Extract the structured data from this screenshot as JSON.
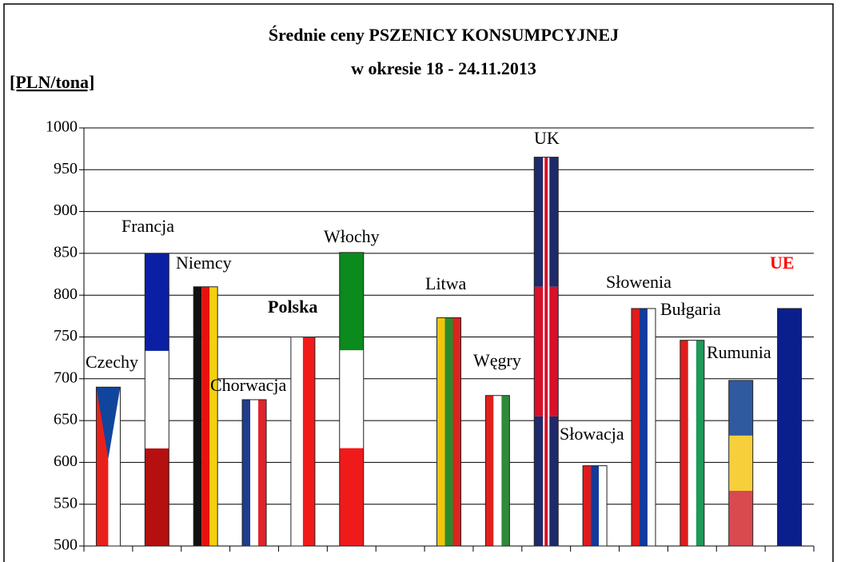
{
  "chart_data": {
    "type": "bar",
    "title": "Średnie ceny PSZENICY KONSUMPCYJNEJ",
    "subtitle": "w okresie 18 - 24.11.2013",
    "y_label": "[PLN/tona]",
    "categories": [
      "Czechy",
      "Francja",
      "Niemcy",
      "Chorwacja",
      "Polska",
      "Włochy",
      null,
      "Litwa",
      "Węgry",
      "UK",
      "Słowacja",
      "Słowenia",
      "Bułgaria",
      "Rumunia",
      "UE"
    ],
    "values": [
      690,
      850,
      810,
      675,
      750,
      851,
      null,
      773,
      680,
      965,
      596,
      784,
      746,
      698,
      784
    ],
    "colors": [
      [
        "#e8221b",
        "#ffffff"
      ],
      [
        "#0a1fa3",
        "#ffffff",
        "#b50f0f"
      ],
      [
        "#111111",
        "#e8110f",
        "#f5d10c"
      ],
      [
        "#1f3d8f",
        "#ffffff",
        "#e0242b"
      ],
      [
        "#ffffff",
        "#f01a1a"
      ],
      [
        "#0b8a1d",
        "#ffffff",
        "#f01a1a"
      ],
      null,
      [
        "#f2c40f",
        "#2c8a2c",
        "#d9241f"
      ],
      [
        "#e0201d",
        "#ffffff",
        "#2f8a3a"
      ],
      [
        "#1f2a6b",
        "#d8102a",
        "#1f2a6b"
      ],
      [
        "#e01b1b",
        "#123a9a",
        "#ffffff"
      ],
      [
        "#e01b1b",
        "#123a9a",
        "#ffffff"
      ],
      [
        "#e01b1b",
        "#ffffff",
        "#1f9a5a"
      ],
      [
        "#2f5aa0",
        "#f6cf3a",
        "#d94a4f"
      ],
      [
        "#0b1f8c"
      ]
    ],
    "ylim": [
      500,
      1000
    ],
    "yticks": [
      500,
      550,
      600,
      650,
      700,
      750,
      800,
      850,
      900,
      950,
      1000
    ],
    "grid": true
  }
}
